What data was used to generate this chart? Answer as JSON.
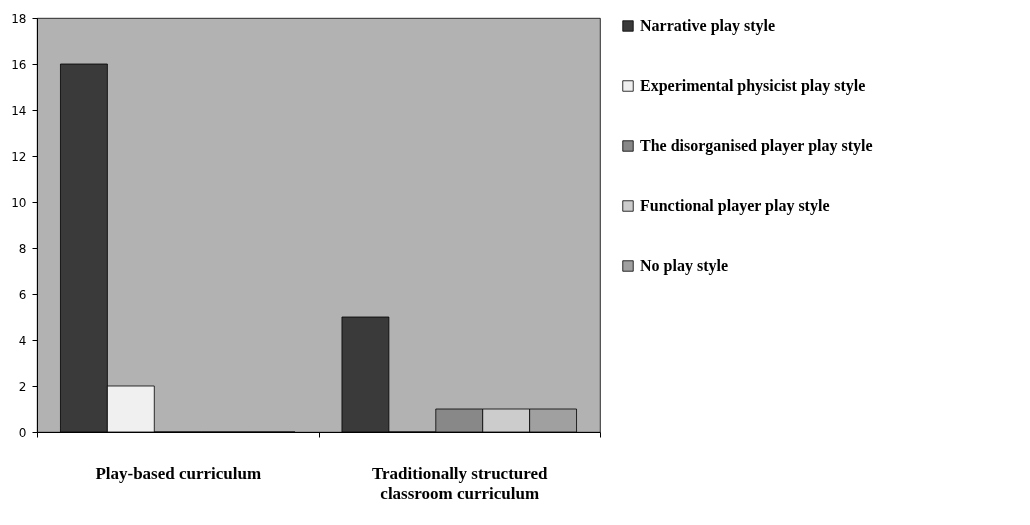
{
  "chart_data": {
    "type": "bar",
    "categories": [
      "Play-based  curriculum",
      "Traditionally structured classroom curriculum"
    ],
    "series": [
      {
        "name": "Narrative play style",
        "color": "#3a3a3a",
        "values": [
          16,
          5
        ]
      },
      {
        "name": "Experimental physicist play style",
        "color": "#f0f0f0",
        "values": [
          2,
          0
        ]
      },
      {
        "name": "The disorganised player play style",
        "color": "#888888",
        "values": [
          0,
          1
        ]
      },
      {
        "name": "Functional player play style",
        "color": "#cccccc",
        "values": [
          0,
          1
        ]
      },
      {
        "name": "No play style",
        "color": "#a0a0a0",
        "values": [
          0,
          1
        ]
      }
    ],
    "ylim": [
      0,
      18
    ],
    "yticks": [
      0,
      2,
      4,
      6,
      8,
      10,
      12,
      14,
      16,
      18
    ],
    "grid": false,
    "legend": "right"
  }
}
